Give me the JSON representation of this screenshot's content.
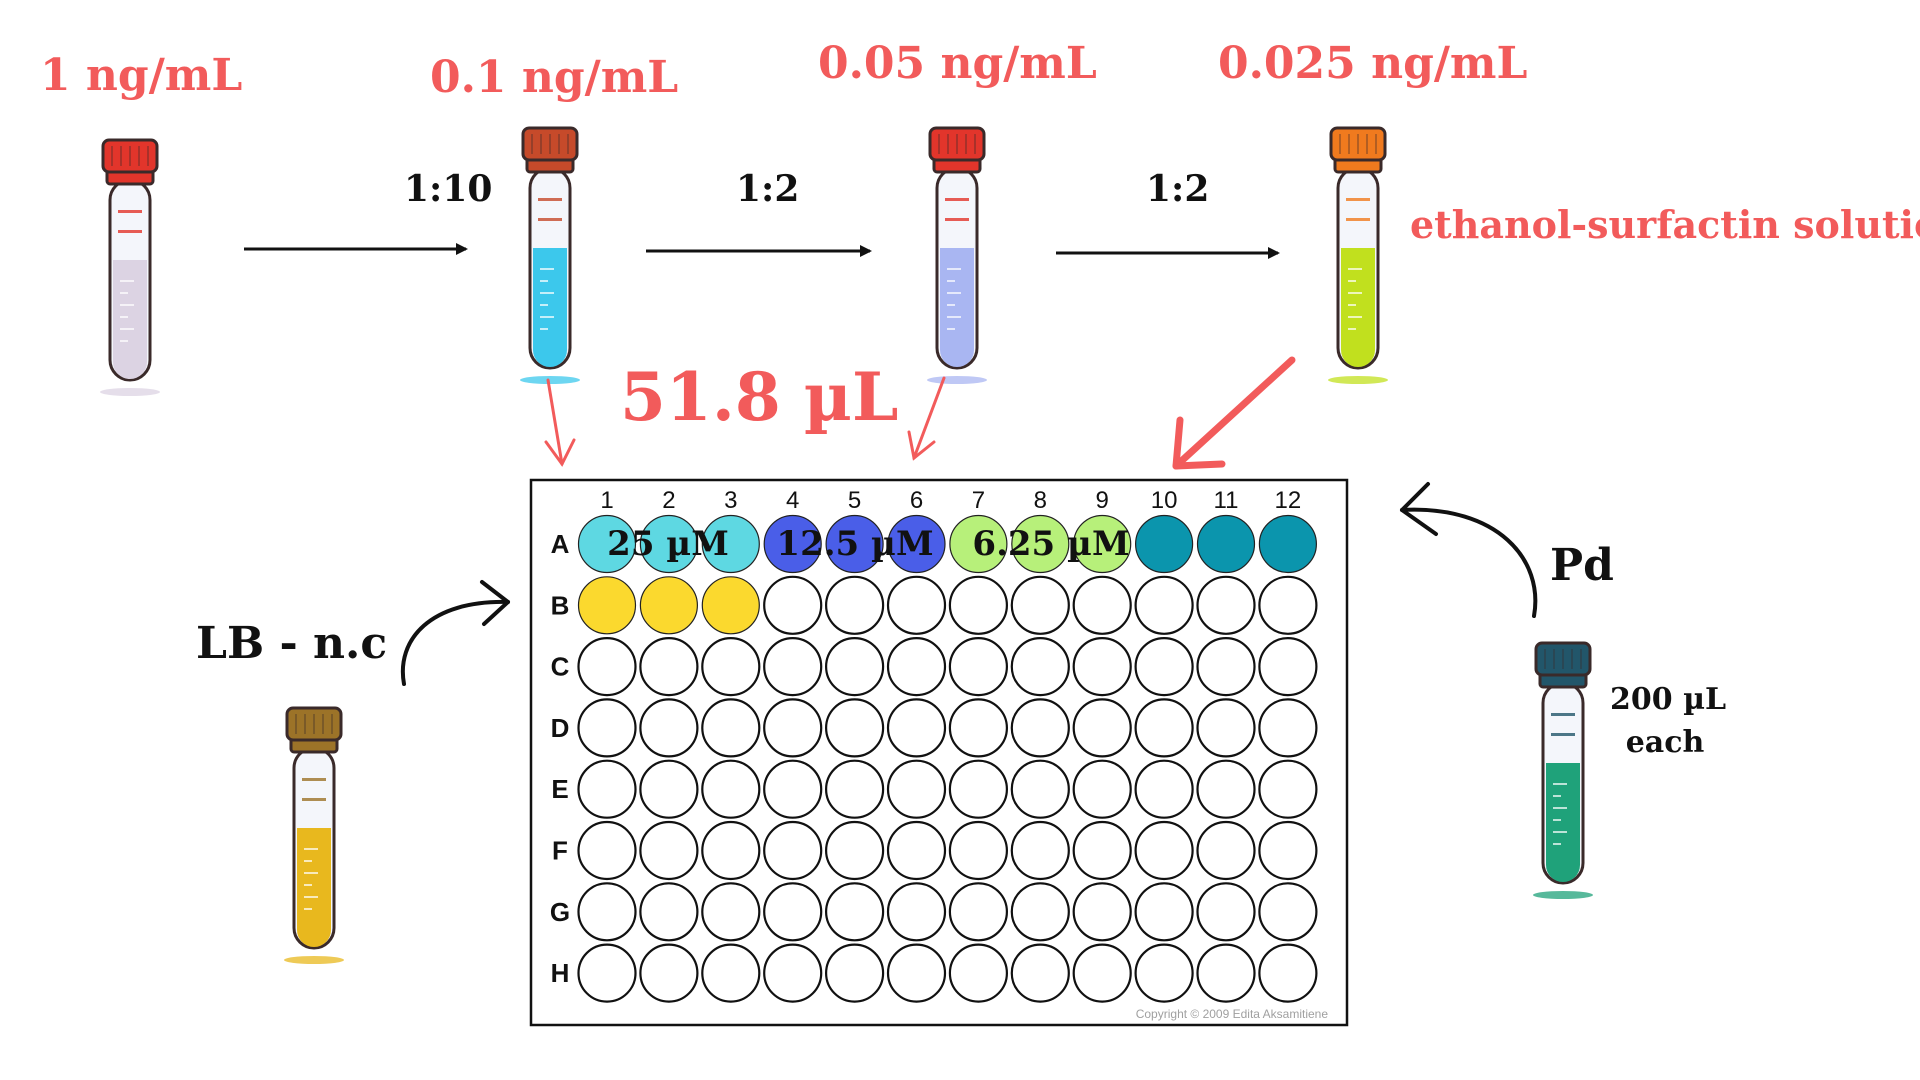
{
  "concentrations": [
    "1 ng/mL",
    "0.1 ng/mL",
    "0.05 ng/mL",
    "0.025 ng/mL"
  ],
  "ratios": [
    "1:10",
    "1:2",
    "1:2"
  ],
  "solution_label": "ethanol-surfactin solution",
  "volume_label": "51.8 µL",
  "negative_control_label": "LB - n.c",
  "pd_label": "Pd",
  "pd_volume_line1": "200 µL",
  "pd_volume_line2": "each",
  "plate": {
    "columns": [
      "1",
      "2",
      "3",
      "4",
      "5",
      "6",
      "7",
      "8",
      "9",
      "10",
      "11",
      "12"
    ],
    "rows": [
      "A",
      "B",
      "C",
      "D",
      "E",
      "F",
      "G",
      "H"
    ],
    "group_labels": [
      "25 µM",
      "12.5 µM",
      "6.25 µM"
    ],
    "copyright": "Copyright © 2009 Edita Aksamitiene"
  },
  "colors": {
    "label_red": "#f25b5b",
    "well_cyan": "#5ed8e2",
    "well_blue": "#4a5ee8",
    "well_lime": "#b7f07a",
    "well_teal": "#0b95ad",
    "well_yellow": "#fbd92e"
  },
  "tubes": [
    {
      "name": "tube-1ng",
      "cap": "#e2352b",
      "liquid": "#dcd3e3"
    },
    {
      "name": "tube-0-1ng",
      "cap": "#c64a2a",
      "liquid": "#3cc8ec"
    },
    {
      "name": "tube-0-05ng",
      "cap": "#e2352b",
      "liquid": "#a9b6f2"
    },
    {
      "name": "tube-0-025ng",
      "cap": "#f07a1e",
      "liquid": "#c1e01e"
    },
    {
      "name": "tube-lb",
      "cap": "#9c7328",
      "liquid": "#e8b81e"
    },
    {
      "name": "tube-pd",
      "cap": "#22566a",
      "liquid": "#1fa27a"
    }
  ]
}
